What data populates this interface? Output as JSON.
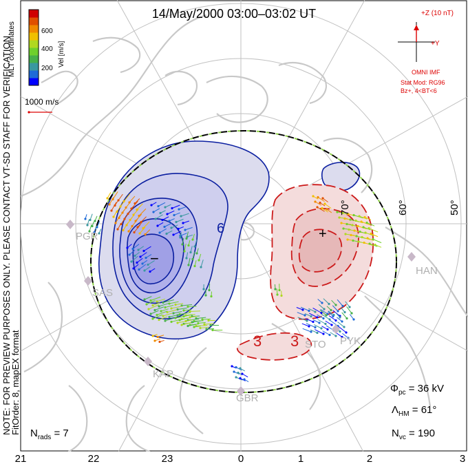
{
  "title": "14/May/2000 03:00–03:02 UT",
  "colorbar": {
    "label": "Vel [m/s]",
    "ticks": [
      "600",
      "400",
      "200"
    ],
    "colors": [
      "#0000ff",
      "#1e6ad8",
      "#3a98a0",
      "#46b04a",
      "#6ed02c",
      "#b0d820",
      "#f0c000",
      "#f08a00",
      "#e05000",
      "#d00000"
    ]
  },
  "coords_label": "MLT coordinates",
  "scale_label": "1000 m/s",
  "notes": {
    "line1": "NOTE: FOR PREVIEW PURPOSES ONLY. PLEASE CONTACT VT-SD STAFF FOR VERIFICATION.",
    "line2": "FitOrder: 8, mapEX format"
  },
  "imf": {
    "z_label": "+Z (10 nT)",
    "y_label": "+Y",
    "source": "OMNI IMF",
    "model": "Stat Mod: RG96",
    "condition": "Bz+, 4<BT<6",
    "color": "#dd0000"
  },
  "lat_labels": [
    "70°",
    "60°",
    "50°"
  ],
  "stations": [
    "PGR",
    "SAS",
    "KAP",
    "GBR",
    "STO",
    "PYK",
    "HAN"
  ],
  "contour_labels": {
    "pos": "6",
    "neg1": "3",
    "neg2": "3",
    "min_marker": "−",
    "max_marker": "+"
  },
  "stats": {
    "phi_pc": "Φ",
    "phi_sub": "pc",
    "phi_val": " = 36 kV",
    "lambda": "Λ",
    "lambda_sub": "HM",
    "lambda_val": " = 61°",
    "nvc": "N",
    "nvc_sub": "vc",
    "nvc_val": " = 190",
    "nrads": "N",
    "nrads_sub": "rads",
    "nrads_val": " = 7"
  },
  "mlt_axis": [
    "21",
    "22",
    "23",
    "0",
    "1",
    "2",
    "3"
  ],
  "colors": {
    "neg_contour": "#0a1ea0",
    "pos_contour": "#cc1a1a",
    "hmb": "#000000",
    "hmb_dash": "#8fd04a",
    "land": "#c8c8c8",
    "grid": "#c0c0c0"
  }
}
